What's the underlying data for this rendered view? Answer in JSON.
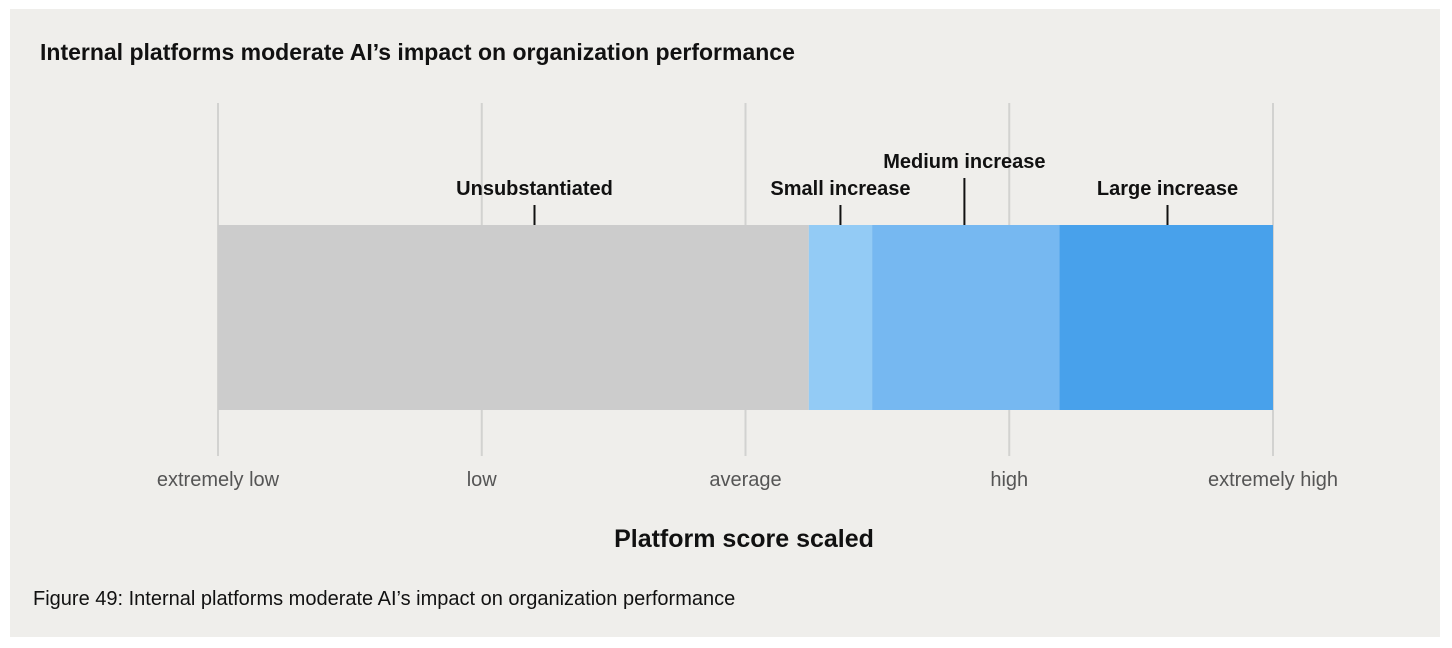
{
  "chart_data": {
    "type": "bar",
    "orientation": "horizontal-segmented",
    "title": "Internal platforms moderate AI’s impact on organization performance",
    "xlabel": "Platform score scaled",
    "x_ticks": [
      {
        "value": 0,
        "label": "extremely low"
      },
      {
        "value": 1,
        "label": "low"
      },
      {
        "value": 2,
        "label": "average"
      },
      {
        "value": 3,
        "label": "high"
      },
      {
        "value": 4,
        "label": "extremely high"
      }
    ],
    "xlim": [
      0,
      4
    ],
    "grid": true,
    "segments": [
      {
        "label": "Unsubstantiated",
        "start": 0,
        "end": 2.24,
        "marker": 1.2,
        "color": "#cccccc"
      },
      {
        "label": "Small increase",
        "start": 2.24,
        "end": 2.48,
        "marker": 2.36,
        "color": "#93cbf5"
      },
      {
        "label": "Medium increase",
        "start": 2.48,
        "end": 3.19,
        "marker": 2.83,
        "color": "#76b8f1"
      },
      {
        "label": "Large increase",
        "start": 3.19,
        "end": 4.0,
        "marker": 3.6,
        "color": "#48a1eb"
      }
    ]
  },
  "caption": "Figure 49: Internal platforms moderate AI’s impact on organization performance"
}
